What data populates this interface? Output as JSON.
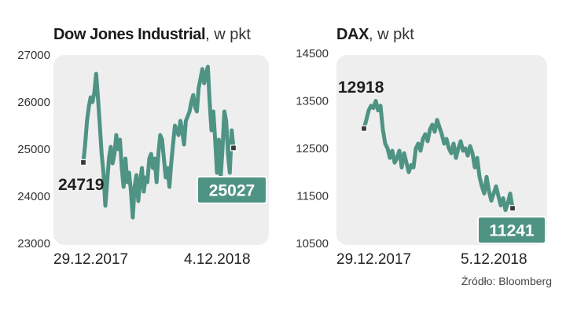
{
  "chart_data": [
    {
      "type": "line",
      "title": "Dow Jones Industrial",
      "unit": ", w pkt",
      "ylim": [
        23000,
        27000
      ],
      "yticks": [
        "27000",
        "26000",
        "25000",
        "24000",
        "23000"
      ],
      "x_labels": [
        "29.12.2017",
        "4.12.2018"
      ],
      "start_value": 24719,
      "end_value": 25027,
      "start_label": "24719",
      "end_label": "25027",
      "line_color": "#4f9384",
      "series": [
        {
          "values": [
            24719,
            25100,
            25600,
            25900,
            26100,
            26000,
            26200,
            26600,
            26100,
            25500,
            24900,
            24500,
            23800,
            24300,
            24800,
            25050,
            24700,
            24900,
            25300,
            25000,
            25200,
            24600,
            24200,
            24800,
            24300,
            24500,
            24100,
            23550,
            24200,
            24450,
            23900,
            24300,
            24600,
            24100,
            24400,
            24300,
            24800,
            24900,
            24600,
            24800,
            24300,
            24900,
            25300,
            25200,
            24800,
            24400,
            24600,
            24200,
            24700,
            25100,
            25500,
            25400,
            25300,
            25600,
            25400,
            25100,
            25600,
            25700,
            25800,
            26000,
            26150,
            25900,
            25800,
            26300,
            26500,
            26700,
            26400,
            26600,
            26750,
            26000,
            25400,
            25800,
            25200,
            24500,
            25200,
            24400,
            25000,
            25800,
            25600,
            24900,
            24500,
            25400,
            25027
          ]
        }
      ]
    },
    {
      "type": "line",
      "title": "DAX",
      "unit": ", w pkt",
      "ylim": [
        10500,
        14500
      ],
      "yticks": [
        "14500",
        "13500",
        "12500",
        "11500",
        "10500"
      ],
      "x_labels": [
        "29.12.2017",
        "5.12.2018"
      ],
      "start_value": 12918,
      "end_value": 11241,
      "start_label": "12918",
      "end_label": "11241",
      "line_color": "#4f9384",
      "series": [
        {
          "values": [
            12918,
            13100,
            13300,
            13400,
            13350,
            13500,
            13300,
            13400,
            12900,
            12600,
            12500,
            12300,
            12450,
            12200,
            12300,
            12450,
            12100,
            12400,
            12200,
            12000,
            12150,
            12100,
            12500,
            12600,
            12450,
            12700,
            12800,
            12650,
            12900,
            13000,
            12850,
            13100,
            12950,
            12800,
            12600,
            12700,
            12500,
            12400,
            12600,
            12300,
            12500,
            12650,
            12450,
            12500,
            12350,
            12550,
            12400,
            12100,
            12300,
            11900,
            11700,
            11550,
            11900,
            11600,
            11400,
            11550,
            11700,
            11500,
            11300,
            11450,
            11200,
            11350,
            11550,
            11241
          ]
        }
      ]
    }
  ],
  "source": "Źródło: Bloomberg"
}
